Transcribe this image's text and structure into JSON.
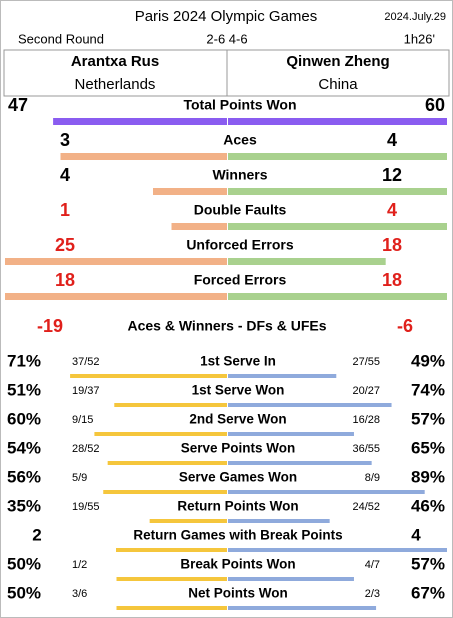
{
  "header": {
    "title": "Paris 2024 Olympic Games",
    "date": "2024.July.29",
    "round": "Second Round",
    "score": "2-6 4-6",
    "duration": "1h26'"
  },
  "players": [
    {
      "name": "Arantxa Rus",
      "country": "Netherlands"
    },
    {
      "name": "Qinwen Zheng",
      "country": "China"
    }
  ],
  "count_stats": [
    {
      "label": "Total Points Won",
      "left": 47,
      "right": 60
    },
    {
      "label": "Aces",
      "left": 3,
      "right": 4
    },
    {
      "label": "Winners",
      "left": 4,
      "right": 12
    },
    {
      "label": "Double Faults",
      "left": 1,
      "right": 4
    },
    {
      "label": "Unforced Errors",
      "left": 25,
      "right": 18
    },
    {
      "label": "Forced Errors",
      "left": 18,
      "right": 18
    }
  ],
  "summary": {
    "label": "Aces & Winners - DFs & UFEs",
    "left": -19,
    "right": -6
  },
  "rate_stats": [
    {
      "label": "1st Serve In",
      "left": {
        "value": 71,
        "label": "71%"
      },
      "left_detail": "37/52",
      "right_detail": "27/55",
      "right": {
        "value": 49,
        "label": "49%"
      }
    },
    {
      "label": "1st Serve Won",
      "left": {
        "value": 51,
        "label": "51%"
      },
      "left_detail": "19/37",
      "right_detail": "20/27",
      "right": {
        "value": 74,
        "label": "74%"
      }
    },
    {
      "label": "2nd Serve Won",
      "left": {
        "value": 60,
        "label": "60%"
      },
      "left_detail": "9/15",
      "right_detail": "16/28",
      "right": {
        "value": 57,
        "label": "57%"
      }
    },
    {
      "label": "Serve Points Won",
      "left": {
        "value": 54,
        "label": "54%"
      },
      "left_detail": "28/52",
      "right_detail": "36/55",
      "right": {
        "value": 65,
        "label": "65%"
      }
    },
    {
      "label": "Serve Games Won",
      "left": {
        "value": 56,
        "label": "56%"
      },
      "left_detail": "5/9",
      "right_detail": "8/9",
      "right": {
        "value": 89,
        "label": "89%"
      }
    },
    {
      "label": "Return Points Won",
      "left": {
        "value": 35,
        "label": "35%"
      },
      "left_detail": "19/55",
      "right_detail": "24/52",
      "right": {
        "value": 46,
        "label": "46%"
      }
    },
    {
      "label": "Return Games with Break Points",
      "left": 2,
      "right": 4
    },
    {
      "label": "Break Points Won",
      "left": {
        "value": 50,
        "label": "50%"
      },
      "left_detail": "1/2",
      "right_detail": "4/7",
      "right": {
        "value": 57,
        "label": "57%"
      }
    },
    {
      "label": "Net Points Won",
      "left": {
        "value": 50,
        "label": "50%"
      },
      "left_detail": "3/6",
      "right_detail": "2/3",
      "right": {
        "value": 67,
        "label": "67%"
      }
    }
  ]
}
